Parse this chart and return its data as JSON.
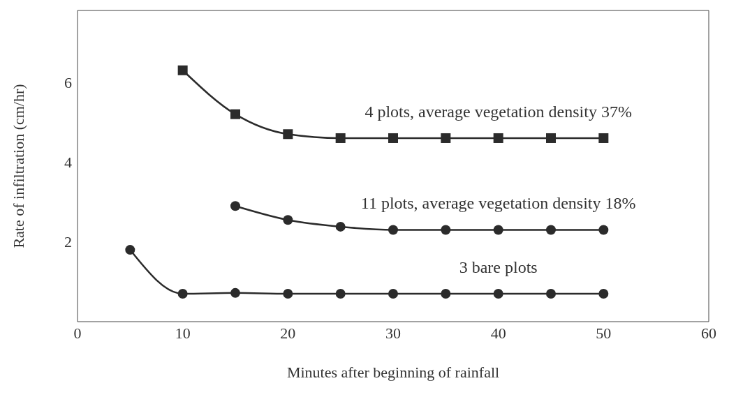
{
  "chart_data": {
    "type": "line",
    "xlabel": "Minutes after beginning of rainfall",
    "ylabel": "Rate of infiltration (cm/hr)",
    "xlim": [
      0,
      60
    ],
    "xticks": [
      0,
      10,
      20,
      30,
      40,
      50,
      60
    ],
    "ylim": [
      0,
      7.8
    ],
    "yticks": [
      2,
      4,
      6
    ],
    "line_style": "solid",
    "series": [
      {
        "name": "4 plots, average vegetation density 37%",
        "color": "#2b2b2b",
        "marker": "square",
        "x": [
          10,
          15,
          20,
          25,
          30,
          35,
          40,
          45,
          50
        ],
        "values": [
          6.3,
          5.2,
          4.7,
          4.6,
          4.6,
          4.6,
          4.6,
          4.6,
          4.6
        ]
      },
      {
        "name": "11 plots, average vegetation density 18%",
        "color": "#2b2b2b",
        "marker": "circle",
        "x": [
          15,
          20,
          25,
          30,
          35,
          40,
          45,
          50
        ],
        "values": [
          2.9,
          2.55,
          2.38,
          2.3,
          2.3,
          2.3,
          2.3,
          2.3
        ]
      },
      {
        "name": "3 bare plots",
        "color": "#2b2b2b",
        "marker": "circle",
        "x": [
          5,
          10,
          15,
          20,
          25,
          30,
          35,
          40,
          45,
          50
        ],
        "values": [
          1.8,
          0.7,
          0.72,
          0.7,
          0.7,
          0.7,
          0.7,
          0.7,
          0.7,
          0.7
        ]
      }
    ]
  }
}
